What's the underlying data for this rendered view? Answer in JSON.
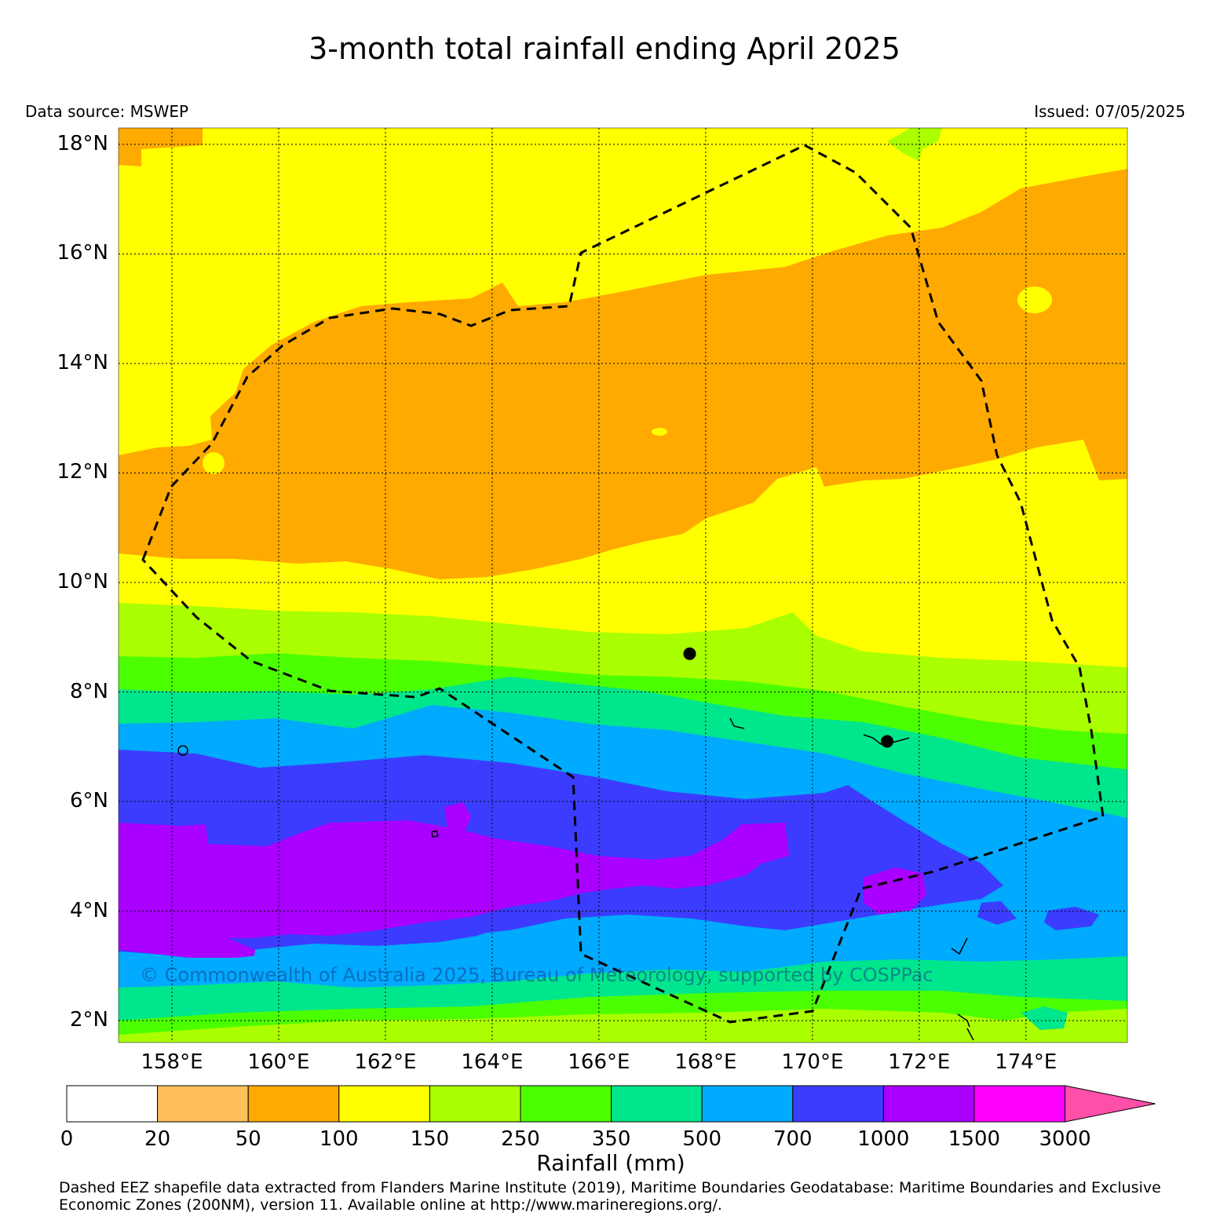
{
  "title": "3-month total rainfall ending April 2025",
  "data_source": "Data source: MSWEP",
  "issued": "Issued: 07/05/2025",
  "copyright": "© Commonwealth of Australia 2025, Bureau of Meteorology, supported by COSPPac",
  "footnote_line1": "Dashed EEZ shapefile data extracted from Flanders Marine Institute (2019), Maritime Boundaries Geodatabase: Maritime Boundaries and Exclusive",
  "footnote_line2": "Economic Zones (200NM), version 11. Available online at http://www.marineregions.org/.",
  "latitude_labels": [
    "18°N",
    "16°N",
    "14°N",
    "12°N",
    "10°N",
    "8°N",
    "6°N",
    "4°N",
    "2°N"
  ],
  "longitude_labels": [
    "158°E",
    "160°E",
    "162°E",
    "164°E",
    "166°E",
    "168°E",
    "170°E",
    "172°E",
    "174°E"
  ],
  "colorbar": {
    "title": "Rainfall (mm)",
    "ticks": [
      "0",
      "20",
      "50",
      "100",
      "150",
      "250",
      "350",
      "500",
      "700",
      "1000",
      "1500",
      "3000"
    ],
    "colors": [
      "#ffffff",
      "#ffbf5a",
      "#ffaa00",
      "#ffff00",
      "#aaff00",
      "#4cff00",
      "#00e68c",
      "#00aaff",
      "#3c3cff",
      "#aa00ff",
      "#ff00ff",
      "#ff4fa8"
    ]
  },
  "places": [
    {
      "name": "capital-dot",
      "lon": 167.7,
      "lat": 8.7
    },
    {
      "name": "capital-dot",
      "lon": 171.4,
      "lat": 7.1
    }
  ]
}
